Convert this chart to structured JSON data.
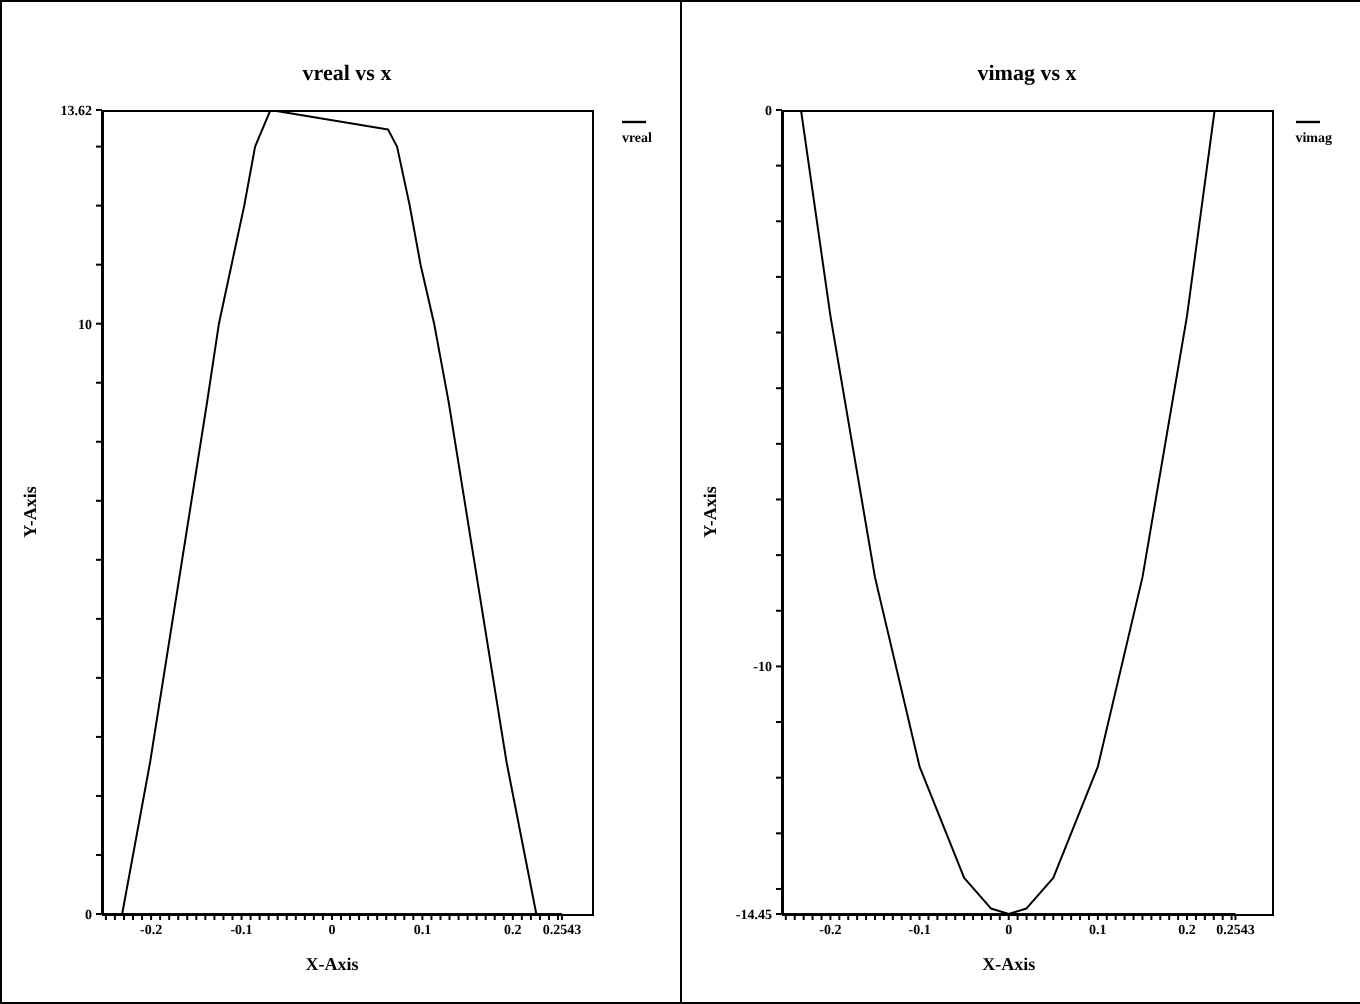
{
  "chart_data": [
    {
      "type": "line",
      "title": "vreal vs x",
      "xlabel": "X-Axis",
      "ylabel": "Y-Axis",
      "legend": "top right",
      "marker": "none",
      "line_style": "solid",
      "x": [
        -0.232,
        -0.201,
        -0.138,
        -0.125,
        -0.097,
        -0.085,
        -0.068,
        0.062,
        0.072,
        0.086,
        0.098,
        0.113,
        0.129,
        0.193,
        0.226
      ],
      "series": [
        {
          "name": "vreal",
          "color": "#000000",
          "values": [
            0,
            2.58,
            8.68,
            10,
            12,
            13,
            13.62,
            13.29,
            13.0,
            12.0,
            11.0,
            10.0,
            8.68,
            2.58,
            0
          ]
        }
      ],
      "xlim": [
        -0.2543,
        0.2543
      ],
      "xticks": [
        {
          "value": -0.25,
          "label": null
        },
        {
          "value": -0.24,
          "label": null
        },
        {
          "value": -0.23,
          "label": null
        },
        {
          "value": -0.22,
          "label": null
        },
        {
          "value": -0.21,
          "label": null
        },
        -0.2,
        {
          "value": -0.19,
          "label": null
        },
        {
          "value": -0.18,
          "label": null
        },
        {
          "value": -0.17,
          "label": null
        },
        {
          "value": -0.16,
          "label": null
        },
        {
          "value": -0.15,
          "label": null
        },
        {
          "value": -0.14,
          "label": null
        },
        {
          "value": -0.13,
          "label": null
        },
        {
          "value": -0.12,
          "label": null
        },
        {
          "value": -0.11,
          "label": null
        },
        -0.1,
        {
          "value": -0.09,
          "label": null
        },
        {
          "value": -0.08,
          "label": null
        },
        {
          "value": -0.07,
          "label": null
        },
        {
          "value": -0.06,
          "label": null
        },
        {
          "value": -0.05,
          "label": null
        },
        {
          "value": -0.04,
          "label": null
        },
        {
          "value": -0.03,
          "label": null
        },
        {
          "value": -0.02,
          "label": null
        },
        {
          "value": -0.01,
          "label": null
        },
        0,
        {
          "value": 0.01,
          "label": null
        },
        {
          "value": 0.02,
          "label": null
        },
        {
          "value": 0.03,
          "label": null
        },
        {
          "value": 0.04,
          "label": null
        },
        {
          "value": 0.05,
          "label": null
        },
        {
          "value": 0.06,
          "label": null
        },
        {
          "value": 0.07,
          "label": null
        },
        {
          "value": 0.08,
          "label": null
        },
        {
          "value": 0.09,
          "label": null
        },
        0.1,
        {
          "value": 0.11,
          "label": null
        },
        {
          "value": 0.12,
          "label": null
        },
        {
          "value": 0.13,
          "label": null
        },
        {
          "value": 0.14,
          "label": null
        },
        {
          "value": 0.15,
          "label": null
        },
        {
          "value": 0.16,
          "label": null
        },
        {
          "value": 0.17,
          "label": null
        },
        {
          "value": 0.18,
          "label": null
        },
        {
          "value": 0.19,
          "label": null
        },
        0.2,
        {
          "value": 0.21,
          "label": null
        },
        {
          "value": 0.22,
          "label": null
        },
        {
          "value": 0.23,
          "label": null
        },
        {
          "value": 0.24,
          "label": null
        },
        {
          "value": 0.25,
          "label": null
        },
        0.2543
      ],
      "ylim": [
        0,
        13.62
      ],
      "yticks": [
        0,
        {
          "value": 1,
          "label": null
        },
        {
          "value": 2,
          "label": null
        },
        {
          "value": 3,
          "label": null
        },
        {
          "value": 4,
          "label": null
        },
        {
          "value": 5,
          "label": null
        },
        {
          "value": 6,
          "label": null
        },
        {
          "value": 7,
          "label": null
        },
        {
          "value": 8,
          "label": null
        },
        {
          "value": 9,
          "label": null
        },
        10,
        {
          "value": 11,
          "label": null
        },
        {
          "value": 12,
          "label": null
        },
        {
          "value": 13,
          "label": null
        },
        13.62
      ]
    },
    {
      "type": "line",
      "title": "vimag vs x",
      "xlabel": "X-Axis",
      "ylabel": "Y-Axis",
      "legend": "top right",
      "marker": "none",
      "line_style": "solid",
      "x": [
        -0.233,
        -0.2,
        -0.15,
        -0.1,
        -0.05,
        -0.02,
        0,
        0.02,
        0.05,
        0.1,
        0.15,
        0.2,
        0.231
      ],
      "series": [
        {
          "name": "vimag",
          "color": "#000000",
          "values": [
            0,
            -3.7,
            -8.4,
            -11.8,
            -13.8,
            -14.35,
            -14.45,
            -14.35,
            -13.8,
            -11.8,
            -8.4,
            -3.7,
            0
          ]
        }
      ],
      "xlim": [
        -0.2543,
        0.2543
      ],
      "xticks": [
        {
          "value": -0.25,
          "label": null
        },
        {
          "value": -0.24,
          "label": null
        },
        {
          "value": -0.23,
          "label": null
        },
        {
          "value": -0.22,
          "label": null
        },
        {
          "value": -0.21,
          "label": null
        },
        -0.2,
        {
          "value": -0.19,
          "label": null
        },
        {
          "value": -0.18,
          "label": null
        },
        {
          "value": -0.17,
          "label": null
        },
        {
          "value": -0.16,
          "label": null
        },
        {
          "value": -0.15,
          "label": null
        },
        {
          "value": -0.14,
          "label": null
        },
        {
          "value": -0.13,
          "label": null
        },
        {
          "value": -0.12,
          "label": null
        },
        {
          "value": -0.11,
          "label": null
        },
        -0.1,
        {
          "value": -0.09,
          "label": null
        },
        {
          "value": -0.08,
          "label": null
        },
        {
          "value": -0.07,
          "label": null
        },
        {
          "value": -0.06,
          "label": null
        },
        {
          "value": -0.05,
          "label": null
        },
        {
          "value": -0.04,
          "label": null
        },
        {
          "value": -0.03,
          "label": null
        },
        {
          "value": -0.02,
          "label": null
        },
        {
          "value": -0.01,
          "label": null
        },
        0,
        {
          "value": 0.01,
          "label": null
        },
        {
          "value": 0.02,
          "label": null
        },
        {
          "value": 0.03,
          "label": null
        },
        {
          "value": 0.04,
          "label": null
        },
        {
          "value": 0.05,
          "label": null
        },
        {
          "value": 0.06,
          "label": null
        },
        {
          "value": 0.07,
          "label": null
        },
        {
          "value": 0.08,
          "label": null
        },
        {
          "value": 0.09,
          "label": null
        },
        0.1,
        {
          "value": 0.11,
          "label": null
        },
        {
          "value": 0.12,
          "label": null
        },
        {
          "value": 0.13,
          "label": null
        },
        {
          "value": 0.14,
          "label": null
        },
        {
          "value": 0.15,
          "label": null
        },
        {
          "value": 0.16,
          "label": null
        },
        {
          "value": 0.17,
          "label": null
        },
        {
          "value": 0.18,
          "label": null
        },
        {
          "value": 0.19,
          "label": null
        },
        0.2,
        {
          "value": 0.21,
          "label": null
        },
        {
          "value": 0.22,
          "label": null
        },
        {
          "value": 0.23,
          "label": null
        },
        {
          "value": 0.24,
          "label": null
        },
        {
          "value": 0.25,
          "label": null
        },
        0.2543
      ],
      "ylim": [
        -14.45,
        0
      ],
      "yticks": [
        -14.45,
        {
          "value": -14,
          "label": null
        },
        {
          "value": -13,
          "label": null
        },
        {
          "value": -12,
          "label": null
        },
        {
          "value": -11,
          "label": null
        },
        -10,
        {
          "value": -9,
          "label": null
        },
        {
          "value": -8,
          "label": null
        },
        {
          "value": -7,
          "label": null
        },
        {
          "value": -6,
          "label": null
        },
        {
          "value": -5,
          "label": null
        },
        {
          "value": -4,
          "label": null
        },
        {
          "value": -3,
          "label": null
        },
        {
          "value": -2,
          "label": null
        },
        {
          "value": -1,
          "label": null
        },
        0
      ]
    }
  ]
}
